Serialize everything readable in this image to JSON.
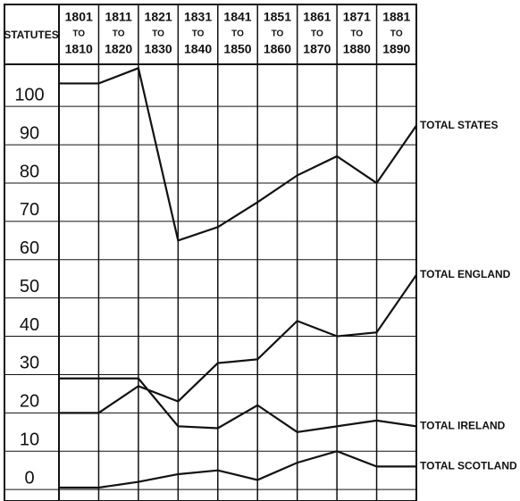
{
  "chart_data": {
    "type": "line",
    "y_header": "STATUTES",
    "columns": [
      [
        "1801",
        "TO",
        "1810"
      ],
      [
        "1811",
        "TO",
        "1820"
      ],
      [
        "1821",
        "TO",
        "1830"
      ],
      [
        "1831",
        "TO",
        "1840"
      ],
      [
        "1841",
        "TO",
        "1850"
      ],
      [
        "1851",
        "TO",
        "1860"
      ],
      [
        "1861",
        "TO",
        "1870"
      ],
      [
        "1871",
        "TO",
        "1880"
      ],
      [
        "1881",
        "TO",
        "1890"
      ]
    ],
    "categories": [
      null,
      null,
      null,
      null,
      null,
      null,
      null,
      null,
      null,
      null
    ],
    "series": [
      {
        "name": "TOTAL STATES",
        "color": "#111111",
        "values": [
          106,
          106,
          110,
          65,
          68.5,
          75,
          82,
          87,
          80,
          95
        ]
      },
      {
        "name": "TOTAL ENGLAND",
        "color": "#111111",
        "values": [
          20,
          20,
          27,
          23,
          33,
          34,
          44,
          40,
          41,
          56
        ]
      },
      {
        "name": "TOTAL IRELAND",
        "color": "#111111",
        "values": [
          29,
          29,
          29,
          16.5,
          16,
          22,
          15,
          16.5,
          18,
          16.5
        ]
      },
      {
        "name": "TOTAL SCOTLAND",
        "color": "#111111",
        "values": [
          0.5,
          0.5,
          2,
          4,
          5,
          2.5,
          7,
          10,
          6,
          6
        ]
      }
    ],
    "ylim": [
      -3,
      111
    ],
    "yticks": [
      0,
      10,
      20,
      30,
      40,
      50,
      60,
      70,
      80,
      90,
      100
    ],
    "grid": true
  }
}
